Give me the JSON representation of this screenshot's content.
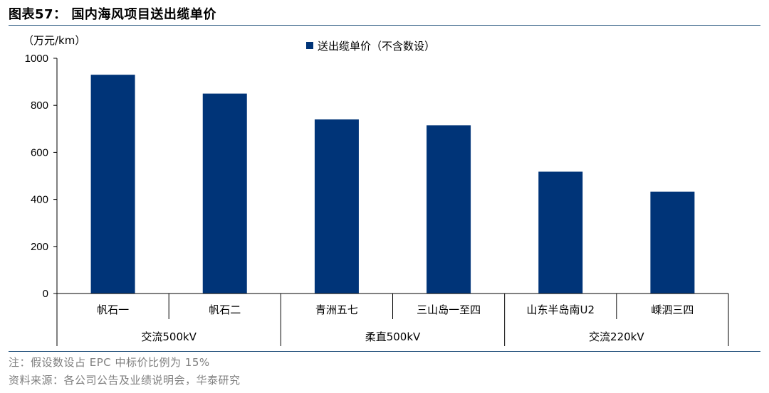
{
  "title": "图表57： 国内海风项目送出缆单价",
  "notes": {
    "note": "注：假设数设占 EPC 中标价比例为 15%",
    "source": "资料来源：各公司公告及业绩说明会，华泰研究"
  },
  "colors": {
    "bar": "#003478",
    "rule": "#1f4e79"
  },
  "chart_data": {
    "type": "bar",
    "unit_label": "（万元/km）",
    "categories": [
      "帆石一",
      "帆石二",
      "青洲五七",
      "三山岛一至四",
      "山东半岛南U2",
      "嵊泗三四"
    ],
    "groups": [
      {
        "label": "交流500kV",
        "categories": [
          "帆石一",
          "帆石二"
        ]
      },
      {
        "label": "柔直500kV",
        "categories": [
          "青洲五七",
          "三山岛一至四"
        ]
      },
      {
        "label": "交流220kV",
        "categories": [
          "山东半岛南U2",
          "嵊泗三四"
        ]
      }
    ],
    "series": [
      {
        "name": "送出缆单价（不含数设）",
        "values": [
          930,
          850,
          740,
          715,
          518,
          433
        ]
      }
    ],
    "ylim": [
      0,
      1000
    ],
    "yticks": [
      0,
      200,
      400,
      600,
      800,
      1000
    ],
    "legend_position": "top-center",
    "grid": false
  }
}
